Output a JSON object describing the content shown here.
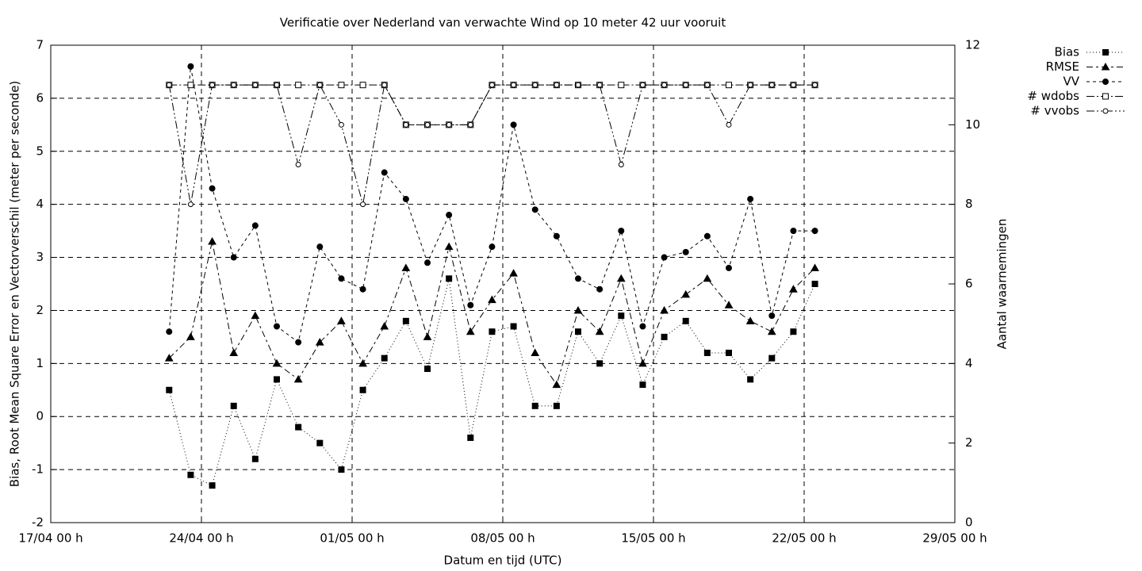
{
  "chart_data": {
    "type": "line",
    "title": "Verificatie over Nederland van verwachte Wind op 10 meter 42 uur vooruit",
    "x_label": "Datum en tijd (UTC)",
    "y_label": "Bias, Root Mean Square Error en Vectorverschil (meter per seconde)",
    "y2_label": "Aantal waarnemingen",
    "x": [
      "22/04 12 h",
      "23/04 12 h",
      "24/04 12 h",
      "25/04 12 h",
      "26/04 12 h",
      "27/04 12 h",
      "28/04 12 h",
      "29/04 12 h",
      "30/04 12 h",
      "01/05 12 h",
      "02/05 12 h",
      "03/05 12 h",
      "04/05 12 h",
      "05/05 12 h",
      "06/05 12 h",
      "07/05 12 h",
      "08/05 12 h",
      "09/05 12 h",
      "10/05 12 h",
      "11/05 12 h",
      "12/05 12 h",
      "13/05 12 h",
      "14/05 12 h",
      "15/05 12 h",
      "16/05 12 h",
      "17/05 12 h",
      "18/05 12 h",
      "19/05 12 h",
      "20/05 12 h",
      "21/05 12 h",
      "22/05 12 h"
    ],
    "xlim": [
      "17/04 00 h",
      "29/05 00 h"
    ],
    "xticks": [
      "17/04 00 h",
      "24/04 00 h",
      "01/05 00 h",
      "08/05 00 h",
      "15/05 00 h",
      "22/05 00 h",
      "29/05 00 h"
    ],
    "ylim": [
      -2,
      7
    ],
    "yticks": [
      -2,
      -1,
      0,
      1,
      2,
      3,
      4,
      5,
      6,
      7
    ],
    "y2lim": [
      0,
      12
    ],
    "y2ticks": [
      0,
      2,
      4,
      6,
      8,
      10,
      12
    ],
    "grid": true,
    "legend": "outside upper right",
    "series": [
      {
        "name": "Bias",
        "color": "#000000",
        "marker": "square",
        "filled": true,
        "dash": "1 3",
        "values": [
          0.5,
          -1.1,
          -1.3,
          0.2,
          -0.8,
          0.7,
          -0.2,
          -0.5,
          -1.0,
          0.5,
          1.1,
          1.8,
          0.9,
          2.6,
          -0.4,
          1.6,
          1.7,
          0.2,
          0.2,
          1.6,
          1.0,
          1.9,
          0.6,
          1.5,
          1.8,
          1.2,
          1.2,
          0.7,
          1.1,
          1.6,
          2.5
        ]
      },
      {
        "name": "RMSE",
        "color": "#000000",
        "marker": "triangle",
        "filled": true,
        "dash": "8 4 3 4",
        "values": [
          1.1,
          1.5,
          3.3,
          1.2,
          1.9,
          1.0,
          0.7,
          1.4,
          1.8,
          1.0,
          1.7,
          2.8,
          1.5,
          3.2,
          1.6,
          2.2,
          2.7,
          1.2,
          0.6,
          2.0,
          1.6,
          2.6,
          1.0,
          2.0,
          2.3,
          2.6,
          2.1,
          1.8,
          1.6,
          2.4,
          2.8
        ]
      },
      {
        "name": "VV",
        "color": "#000000",
        "marker": "circle",
        "filled": true,
        "dash": "4 4",
        "values": [
          1.6,
          6.6,
          4.3,
          3.0,
          3.6,
          1.7,
          1.4,
          3.2,
          2.6,
          2.4,
          4.6,
          4.1,
          2.9,
          3.8,
          2.1,
          3.2,
          5.5,
          3.9,
          3.4,
          2.6,
          2.4,
          3.5,
          1.7,
          3.0,
          3.1,
          3.4,
          2.8,
          4.1,
          1.9,
          3.5,
          3.5
        ]
      },
      {
        "name": "# wdobs",
        "color": "#000000",
        "marker": "square",
        "filled": false,
        "dash": "10 3 2 3",
        "axis": "y2",
        "values": [
          11,
          11,
          11,
          11,
          11,
          11,
          11,
          11,
          11,
          11,
          11,
          10,
          10,
          10,
          10,
          11,
          11,
          11,
          11,
          11,
          11,
          11,
          11,
          11,
          11,
          11,
          11,
          11,
          11,
          11,
          11
        ]
      },
      {
        "name": "# vvobs",
        "color": "#000000",
        "marker": "circle",
        "filled": false,
        "dash": "10 3 2 3 2 3",
        "axis": "y2",
        "values": [
          11,
          8,
          11,
          11,
          11,
          11,
          9,
          11,
          10,
          8,
          11,
          10,
          10,
          10,
          10,
          11,
          11,
          11,
          11,
          11,
          11,
          9,
          11,
          11,
          11,
          11,
          10,
          11,
          11,
          11,
          11
        ]
      }
    ]
  }
}
